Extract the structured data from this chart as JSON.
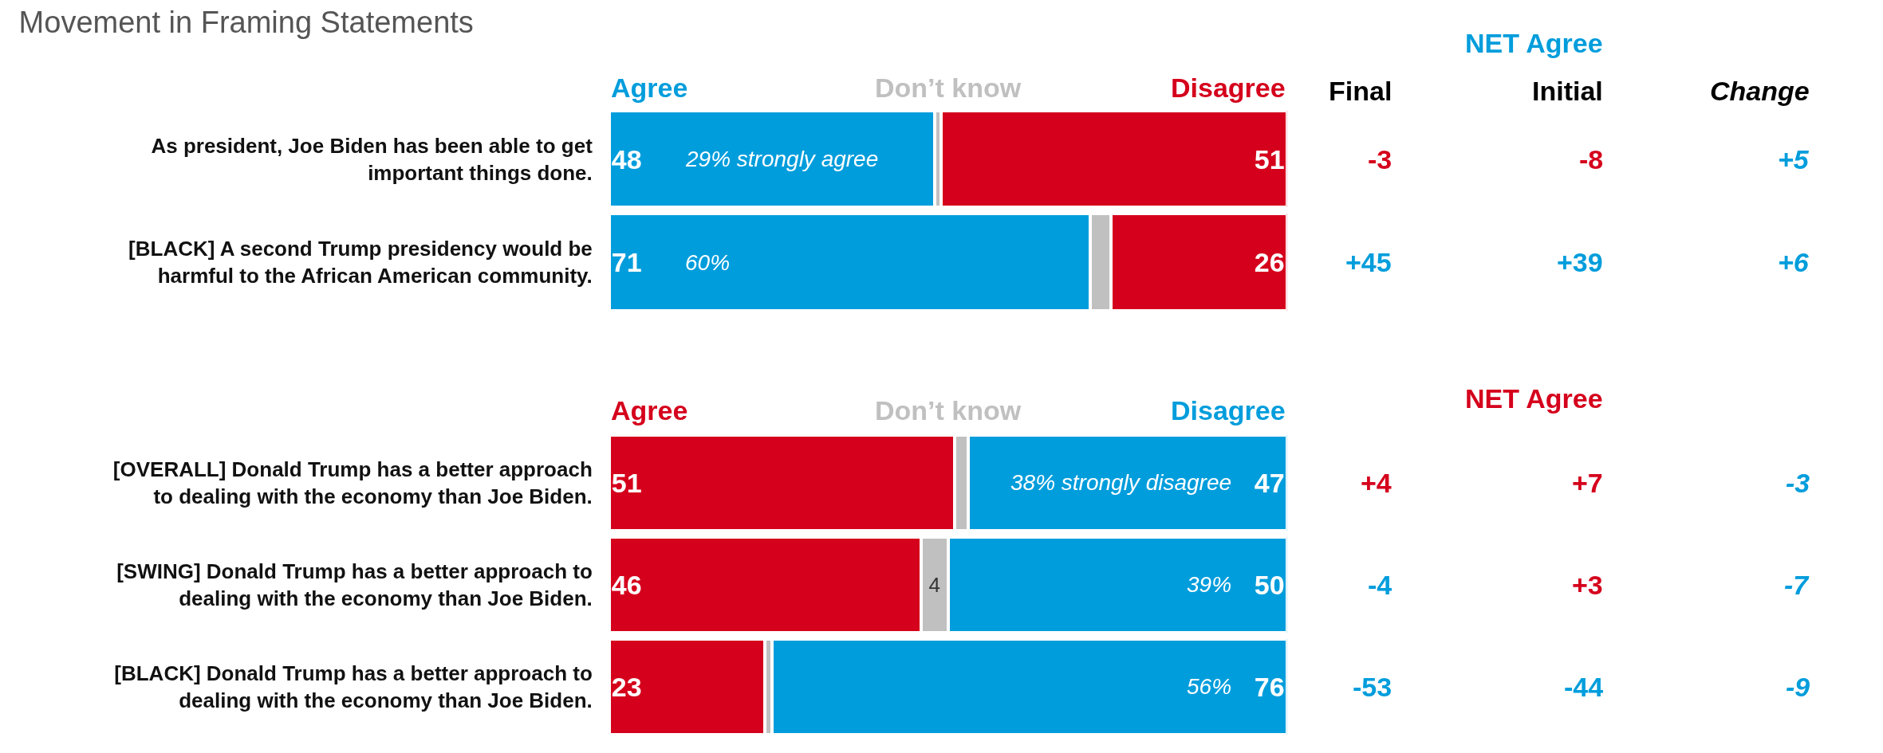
{
  "chart_data": [
    {
      "type": "bar",
      "orientation": "horizontal",
      "stacked": true,
      "title": "Movement in Framing Statements",
      "tick_labels": "y",
      "xlim": [
        0,
        100
      ],
      "categories": [
        "As president, Joe Biden has been able to get important things done.",
        "[BLACK] A second Trump presidency would be harmful to the African American community."
      ],
      "series": [
        {
          "name": "Agree",
          "color": "#009ddc",
          "values": [
            48,
            71
          ],
          "value_labels": [
            "48",
            "71"
          ]
        },
        {
          "name": "Don’t know",
          "color": "#c0c0c0",
          "values": [
            1,
            3
          ],
          "value_labels": [
            null,
            null
          ]
        },
        {
          "name": "Disagree",
          "color": "#d5001c",
          "values": [
            51,
            26
          ],
          "value_labels": [
            "51",
            "26"
          ]
        }
      ],
      "annotations": [
        "29% strongly agree",
        "60%",
        "NET Agree",
        "Final",
        "Initial",
        "Change",
        "-3",
        "-8",
        "+5",
        "+45",
        "+39",
        "+6"
      ]
    },
    {
      "type": "bar",
      "orientation": "horizontal",
      "stacked": true,
      "tick_labels": "y",
      "xlim": [
        0,
        100
      ],
      "categories": [
        "[OVERALL] Donald Trump has a better approach to dealing with the economy than Joe Biden.",
        "[SWING] Donald Trump has a better approach to dealing with the economy than Joe Biden.",
        "[BLACK] Donald Trump has a better approach to dealing with the economy than Joe Biden."
      ],
      "series": [
        {
          "name": "Agree",
          "color": "#d5001c",
          "values": [
            51,
            46,
            23
          ],
          "value_labels": [
            "51",
            "46",
            "23"
          ]
        },
        {
          "name": "Don’t know",
          "color": "#c0c0c0",
          "values": [
            2,
            4,
            1
          ],
          "value_labels": [
            null,
            "4",
            null
          ]
        },
        {
          "name": "Disagree",
          "color": "#009ddc",
          "values": [
            47,
            50,
            76
          ],
          "value_labels": [
            "47",
            "50",
            "76"
          ]
        }
      ],
      "annotations": [
        "38% strongly disagree",
        "39%",
        "56%",
        "NET Agree",
        "+4",
        "+7",
        "-3",
        "-4",
        "+3",
        "-7",
        "-53",
        "-44",
        "-9"
      ]
    }
  ]
}
